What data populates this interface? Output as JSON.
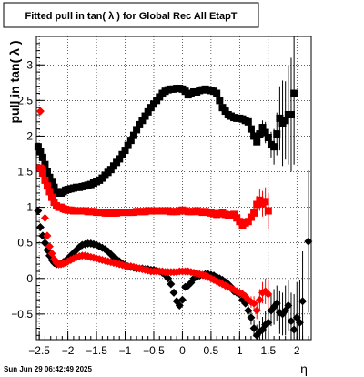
{
  "chart_data": {
    "type": "scatter",
    "title": "Fitted pull in tan( λ ) for Global Rec All EtapT",
    "xlabel": "η",
    "ylabel": "pull in tan( λ )",
    "xlim": [
      -2.55,
      2.25
    ],
    "ylim": [
      -0.86,
      3.4
    ],
    "grid": true,
    "x_ticks": [
      -2.5,
      -2,
      -1.5,
      -1,
      -0.5,
      0,
      0.5,
      1,
      1.5,
      2
    ],
    "x_tick_labels": [
      "−2.5",
      "−2",
      "−1.5",
      "−1",
      "−0.5",
      "0",
      "0.5",
      "1",
      "1.5",
      "2"
    ],
    "y_ticks": [
      -0.5,
      0,
      0.5,
      1,
      1.5,
      2,
      2.5,
      3
    ],
    "y_tick_labels": [
      "−0.5",
      "0",
      "0.5",
      "1",
      "1.5",
      "2",
      "2.5",
      "3"
    ],
    "series": [
      {
        "marker": "square",
        "color": "#000000",
        "x": [
          -2.52,
          -2.48,
          -2.44,
          -2.4,
          -2.36,
          -2.32,
          -2.28,
          -2.24,
          -2.2,
          -2.16,
          -2.12,
          -2.08,
          -2.04,
          -2.0,
          -1.95,
          -1.9,
          -1.85,
          -1.8,
          -1.75,
          -1.7,
          -1.65,
          -1.6,
          -1.55,
          -1.5,
          -1.45,
          -1.4,
          -1.35,
          -1.3,
          -1.25,
          -1.2,
          -1.15,
          -1.1,
          -1.05,
          -1.0,
          -0.95,
          -0.9,
          -0.85,
          -0.8,
          -0.75,
          -0.7,
          -0.65,
          -0.6,
          -0.55,
          -0.5,
          -0.45,
          -0.4,
          -0.35,
          -0.3,
          -0.25,
          -0.2,
          -0.15,
          -0.1,
          -0.05,
          0.0,
          0.05,
          0.1,
          0.15,
          0.2,
          0.25,
          0.3,
          0.35,
          0.4,
          0.45,
          0.5,
          0.55,
          0.6,
          0.65,
          0.7,
          0.75,
          0.8,
          0.85,
          0.9,
          0.95,
          1.0,
          1.05,
          1.1,
          1.15,
          1.2,
          1.25,
          1.3,
          1.35,
          1.4,
          1.45,
          1.5,
          1.55,
          1.6,
          1.65,
          1.7,
          1.75,
          1.8,
          1.85,
          1.9,
          1.95
        ],
        "y": [
          1.85,
          1.78,
          1.7,
          1.6,
          1.5,
          1.42,
          1.35,
          1.28,
          1.22,
          1.2,
          1.2,
          1.22,
          1.24,
          1.25,
          1.26,
          1.27,
          1.28,
          1.28,
          1.29,
          1.3,
          1.31,
          1.32,
          1.34,
          1.36,
          1.38,
          1.41,
          1.45,
          1.49,
          1.53,
          1.58,
          1.63,
          1.68,
          1.74,
          1.8,
          1.87,
          1.94,
          2.01,
          2.09,
          2.16,
          2.22,
          2.28,
          2.34,
          2.4,
          2.45,
          2.5,
          2.55,
          2.6,
          2.63,
          2.65,
          2.66,
          2.66,
          2.67,
          2.67,
          2.66,
          2.63,
          2.58,
          2.6,
          2.62,
          2.62,
          2.64,
          2.65,
          2.66,
          2.65,
          2.64,
          2.63,
          2.6,
          2.5,
          2.4,
          2.35,
          2.3,
          2.28,
          2.26,
          2.25,
          2.25,
          2.24,
          2.22,
          2.2,
          2.1,
          2.0,
          1.92,
          2.03,
          2.12,
          2.05,
          1.98,
          1.88,
          1.85,
          2.03,
          2.25,
          2.18,
          2.22,
          2.3,
          2.3,
          2.6
        ],
        "yerr": [
          0,
          0,
          0,
          0,
          0,
          0,
          0,
          0,
          0,
          0,
          0,
          0,
          0,
          0,
          0,
          0,
          0,
          0,
          0,
          0,
          0,
          0,
          0,
          0,
          0,
          0,
          0,
          0,
          0,
          0,
          0,
          0,
          0,
          0,
          0,
          0,
          0,
          0,
          0,
          0,
          0,
          0,
          0,
          0,
          0,
          0,
          0,
          0,
          0,
          0,
          0,
          0,
          0,
          0,
          0,
          0,
          0,
          0,
          0,
          0,
          0,
          0,
          0,
          0,
          0,
          0,
          0,
          0,
          0,
          0,
          0,
          0,
          0,
          0,
          0,
          0,
          0,
          0,
          0,
          0,
          0,
          0.1,
          0.15,
          0.12,
          0.18,
          0.25,
          0.3,
          0.45,
          0.6,
          0.55,
          0.7,
          0.8,
          1.0
        ]
      },
      {
        "marker": "square",
        "color": "#ff0000",
        "x": [
          -2.48,
          -2.44,
          -2.4,
          -2.36,
          -2.32,
          -2.28,
          -2.24,
          -2.2,
          -2.16,
          -2.12,
          -2.08,
          -2.04,
          -2.0,
          -1.95,
          -1.9,
          -1.85,
          -1.8,
          -1.75,
          -1.7,
          -1.65,
          -1.6,
          -1.55,
          -1.5,
          -1.45,
          -1.4,
          -1.35,
          -1.3,
          -1.25,
          -1.2,
          -1.15,
          -1.1,
          -1.05,
          -1.0,
          -0.95,
          -0.9,
          -0.85,
          -0.8,
          -0.75,
          -0.7,
          -0.65,
          -0.6,
          -0.55,
          -0.5,
          -0.45,
          -0.4,
          -0.35,
          -0.3,
          -0.25,
          -0.2,
          -0.15,
          -0.1,
          -0.05,
          0.0,
          0.05,
          0.1,
          0.15,
          0.2,
          0.25,
          0.3,
          0.35,
          0.4,
          0.45,
          0.5,
          0.55,
          0.6,
          0.65,
          0.7,
          0.75,
          0.8,
          0.85,
          0.9,
          0.95,
          1.0,
          1.05,
          1.1,
          1.15,
          1.2,
          1.25,
          1.3,
          1.35,
          1.4,
          1.45,
          1.5
        ],
        "y": [
          1.55,
          1.48,
          1.38,
          1.3,
          1.22,
          1.14,
          1.07,
          1.02,
          1.0,
          1.0,
          0.98,
          0.97,
          0.96,
          0.96,
          0.95,
          0.95,
          0.95,
          0.95,
          0.95,
          0.94,
          0.94,
          0.94,
          0.93,
          0.93,
          0.93,
          0.92,
          0.92,
          0.92,
          0.92,
          0.92,
          0.93,
          0.93,
          0.93,
          0.93,
          0.93,
          0.93,
          0.94,
          0.94,
          0.94,
          0.94,
          0.95,
          0.95,
          0.95,
          0.95,
          0.95,
          0.95,
          0.95,
          0.95,
          0.94,
          0.94,
          0.94,
          0.95,
          0.96,
          0.95,
          0.94,
          0.94,
          0.94,
          0.95,
          0.94,
          0.93,
          0.94,
          0.93,
          0.92,
          0.91,
          0.9,
          0.91,
          0.92,
          0.9,
          0.89,
          0.89,
          0.9,
          0.85,
          0.8,
          0.75,
          0.78,
          0.8,
          0.86,
          0.92,
          1.04,
          1.1,
          1.05,
          1.08,
          0.95
        ],
        "yerr": [
          0,
          0,
          0,
          0,
          0,
          0,
          0,
          0,
          0,
          0,
          0,
          0,
          0,
          0,
          0,
          0,
          0,
          0,
          0,
          0,
          0,
          0,
          0,
          0,
          0,
          0,
          0,
          0,
          0,
          0,
          0,
          0,
          0,
          0,
          0,
          0,
          0,
          0,
          0,
          0,
          0,
          0,
          0,
          0,
          0,
          0,
          0,
          0,
          0,
          0,
          0,
          0,
          0,
          0,
          0,
          0,
          0,
          0,
          0,
          0,
          0,
          0,
          0,
          0,
          0,
          0,
          0,
          0,
          0,
          0,
          0,
          0,
          0,
          0,
          0,
          0,
          0.05,
          0.1,
          0.12,
          0.15,
          0.18,
          0.2,
          0.25
        ]
      },
      {
        "marker": "diamond",
        "color": "#000000",
        "x": [
          -2.52,
          -2.48,
          -2.44,
          -2.4,
          -2.36,
          -2.32,
          -2.28,
          -2.24,
          -2.2,
          -2.16,
          -2.12,
          -2.08,
          -2.04,
          -2.0,
          -1.95,
          -1.9,
          -1.85,
          -1.8,
          -1.75,
          -1.7,
          -1.65,
          -1.6,
          -1.55,
          -1.5,
          -1.45,
          -1.4,
          -1.35,
          -1.3,
          -1.25,
          -1.2,
          -1.15,
          -1.1,
          -1.05,
          -1.0,
          -0.95,
          -0.9,
          -0.85,
          -0.8,
          -0.75,
          -0.7,
          -0.65,
          -0.6,
          -0.55,
          -0.5,
          -0.45,
          -0.4,
          -0.35,
          -0.3,
          -0.25,
          -0.2,
          -0.15,
          -0.1,
          -0.05,
          0.0,
          0.05,
          0.1,
          0.15,
          0.2,
          0.25,
          0.3,
          0.35,
          0.4,
          0.45,
          0.5,
          0.55,
          0.6,
          0.65,
          0.7,
          0.75,
          0.8,
          0.85,
          0.9,
          0.95,
          1.0,
          1.05,
          1.1,
          1.15,
          1.2,
          1.25,
          1.3,
          1.35,
          1.4,
          1.45,
          1.5,
          1.55,
          1.6,
          1.65,
          1.7,
          1.75,
          1.8,
          1.85,
          1.9,
          1.95,
          2.0,
          2.05,
          2.1,
          2.2
        ],
        "y": [
          0.95,
          0.72,
          0.6,
          0.5,
          0.4,
          0.32,
          0.26,
          0.22,
          0.2,
          0.2,
          0.21,
          0.23,
          0.25,
          0.28,
          0.32,
          0.36,
          0.4,
          0.44,
          0.47,
          0.48,
          0.49,
          0.49,
          0.48,
          0.47,
          0.45,
          0.43,
          0.41,
          0.38,
          0.34,
          0.3,
          0.27,
          0.24,
          0.21,
          0.19,
          0.17,
          0.16,
          0.15,
          0.14,
          0.14,
          0.14,
          0.13,
          0.13,
          0.12,
          0.12,
          0.11,
          0.1,
          0.08,
          0.05,
          0.0,
          -0.08,
          -0.2,
          -0.32,
          -0.38,
          -0.3,
          -0.12,
          -0.1,
          -0.06,
          0.0,
          0.02,
          0.04,
          0.05,
          0.06,
          0.06,
          0.05,
          0.04,
          0.02,
          0.0,
          -0.02,
          -0.05,
          -0.08,
          -0.12,
          -0.18,
          -0.2,
          -0.22,
          -0.3,
          -0.35,
          -0.45,
          -0.55,
          -0.7,
          -0.8,
          -0.75,
          -0.72,
          -0.65,
          -0.62,
          -0.45,
          -0.4,
          -0.35,
          -0.48,
          -0.5,
          -0.45,
          -0.38,
          -0.6,
          -0.72,
          -0.55,
          -0.62,
          -0.32,
          0.52
        ],
        "yerr": [
          0,
          0,
          0,
          0,
          0,
          0,
          0,
          0,
          0,
          0,
          0,
          0,
          0,
          0,
          0,
          0,
          0,
          0,
          0,
          0,
          0,
          0,
          0,
          0,
          0,
          0,
          0,
          0,
          0,
          0,
          0,
          0,
          0,
          0,
          0,
          0,
          0,
          0,
          0,
          0,
          0,
          0,
          0,
          0,
          0,
          0,
          0,
          0,
          0,
          0,
          0,
          0,
          0,
          0,
          0,
          0,
          0,
          0,
          0,
          0,
          0,
          0,
          0,
          0,
          0,
          0,
          0,
          0,
          0,
          0,
          0,
          0,
          0,
          0,
          0,
          0.05,
          0.08,
          0.1,
          0.12,
          0.15,
          0.15,
          0.18,
          0.2,
          0.2,
          0.22,
          0.25,
          0.25,
          0.3,
          0.3,
          0.35,
          0.35,
          0.4,
          0.5,
          0.5,
          0.6,
          0.7,
          1.0
        ]
      },
      {
        "marker": "diamond",
        "color": "#ff0000",
        "x": [
          -2.48,
          -2.44,
          -2.4,
          -2.36,
          -2.32,
          -2.28,
          -2.24,
          -2.2,
          -2.16,
          -2.12,
          -2.08,
          -2.04,
          -2.0,
          -1.95,
          -1.9,
          -1.85,
          -1.8,
          -1.75,
          -1.7,
          -1.65,
          -1.6,
          -1.55,
          -1.5,
          -1.45,
          -1.4,
          -1.35,
          -1.3,
          -1.25,
          -1.2,
          -1.15,
          -1.1,
          -1.05,
          -1.0,
          -0.95,
          -0.9,
          -0.85,
          -0.8,
          -0.75,
          -0.7,
          -0.65,
          -0.6,
          -0.55,
          -0.5,
          -0.45,
          -0.4,
          -0.35,
          -0.3,
          -0.25,
          -0.2,
          -0.15,
          -0.1,
          -0.05,
          0.0,
          0.05,
          0.1,
          0.15,
          0.2,
          0.25,
          0.3,
          0.35,
          0.4,
          0.45,
          0.5,
          0.55,
          0.6,
          0.65,
          0.7,
          0.75,
          0.8,
          0.85,
          0.9,
          0.95,
          1.0,
          1.05,
          1.1,
          1.15,
          1.2,
          1.25,
          1.3,
          1.35,
          1.4,
          1.45,
          1.5
        ],
        "y": [
          2.35,
          1.55,
          0.85,
          0.6,
          0.45,
          0.35,
          0.27,
          0.22,
          0.2,
          0.2,
          0.21,
          0.22,
          0.24,
          0.26,
          0.28,
          0.3,
          0.31,
          0.32,
          0.32,
          0.31,
          0.3,
          0.29,
          0.28,
          0.27,
          0.26,
          0.25,
          0.24,
          0.23,
          0.22,
          0.21,
          0.2,
          0.19,
          0.18,
          0.17,
          0.17,
          0.16,
          0.15,
          0.14,
          0.13,
          0.12,
          0.11,
          0.1,
          0.1,
          0.1,
          0.1,
          0.1,
          0.09,
          0.09,
          0.09,
          0.09,
          0.09,
          0.1,
          0.1,
          0.1,
          0.1,
          0.09,
          0.08,
          0.07,
          0.06,
          0.05,
          0.04,
          0.02,
          0.0,
          -0.02,
          -0.04,
          -0.06,
          -0.08,
          -0.1,
          -0.12,
          -0.14,
          -0.16,
          -0.18,
          -0.2,
          -0.22,
          -0.25,
          -0.3,
          -0.33,
          -0.35,
          -0.45,
          -0.3,
          -0.2,
          -0.18,
          -0.22
        ],
        "yerr": [
          0,
          0,
          0,
          0,
          0,
          0,
          0,
          0,
          0,
          0,
          0,
          0,
          0,
          0,
          0,
          0,
          0,
          0,
          0,
          0,
          0,
          0,
          0,
          0,
          0,
          0,
          0,
          0,
          0,
          0,
          0,
          0,
          0,
          0,
          0,
          0,
          0,
          0,
          0,
          0,
          0,
          0,
          0,
          0,
          0,
          0,
          0,
          0,
          0,
          0,
          0,
          0,
          0,
          0,
          0,
          0,
          0,
          0,
          0,
          0,
          0,
          0,
          0,
          0,
          0,
          0,
          0,
          0,
          0,
          0,
          0,
          0,
          0,
          0,
          0,
          0.05,
          0.08,
          0.1,
          0.12,
          0.15,
          0.15,
          0.18,
          0.2
        ]
      }
    ]
  },
  "footer": {
    "timestamp": "Sun Jun 29 06:42:49 2025"
  }
}
